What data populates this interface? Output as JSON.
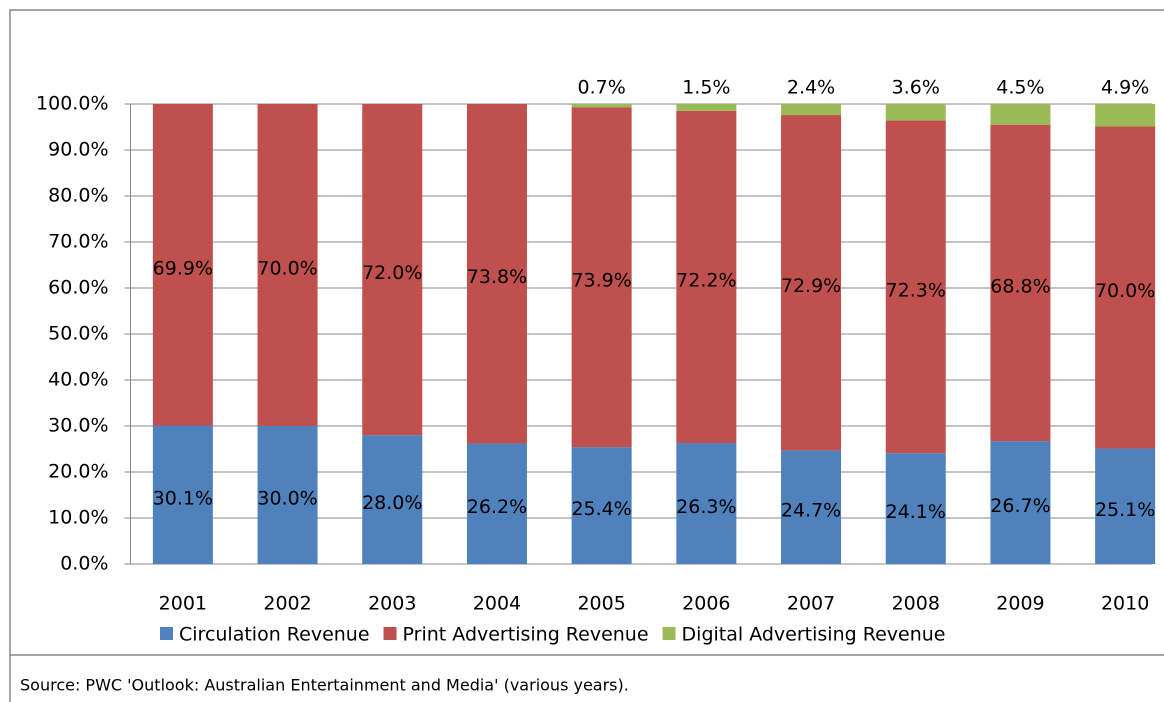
{
  "chart_data": {
    "type": "stacked_bar",
    "categories": [
      "2001",
      "2002",
      "2003",
      "2004",
      "2005",
      "2006",
      "2007",
      "2008",
      "2009",
      "2010"
    ],
    "series": [
      {
        "name": "Circulation Revenue",
        "color": "#4f81bd",
        "values": [
          30.1,
          30.0,
          28.0,
          26.2,
          25.4,
          26.3,
          24.7,
          24.1,
          26.7,
          25.1
        ],
        "value_labels": [
          "30.1%",
          "30.0%",
          "28.0%",
          "26.2%",
          "25.4%",
          "26.3%",
          "24.7%",
          "24.1%",
          "26.7%",
          "25.1%"
        ]
      },
      {
        "name": "Print Advertising Revenue",
        "color": "#c0504d",
        "values": [
          69.9,
          70.0,
          72.0,
          73.8,
          73.9,
          72.2,
          72.9,
          72.3,
          68.8,
          70.0
        ],
        "value_labels": [
          "69.9%",
          "70.0%",
          "72.0%",
          "73.8%",
          "73.9%",
          "72.2%",
          "72.9%",
          "72.3%",
          "68.8%",
          "70.0%"
        ]
      },
      {
        "name": "Digital Advertising Revenue",
        "color": "#9bbb59",
        "values": [
          null,
          null,
          null,
          null,
          0.7,
          1.5,
          2.4,
          3.6,
          4.5,
          4.9
        ],
        "value_labels": [
          null,
          null,
          null,
          null,
          "0.7%",
          "1.5%",
          "2.4%",
          "3.6%",
          "4.5%",
          "4.9%"
        ]
      }
    ],
    "ylim": [
      0,
      100
    ],
    "yticks": [
      {
        "value": 0,
        "label": "0.0%"
      },
      {
        "value": 10,
        "label": "10.0%"
      },
      {
        "value": 20,
        "label": "20.0%"
      },
      {
        "value": 30,
        "label": "30.0%"
      },
      {
        "value": 40,
        "label": "40.0%"
      },
      {
        "value": 50,
        "label": "50.0%"
      },
      {
        "value": 60,
        "label": "60.0%"
      },
      {
        "value": 70,
        "label": "70.0%"
      },
      {
        "value": 80,
        "label": "80.0%"
      },
      {
        "value": 90,
        "label": "90.0%"
      },
      {
        "value": 100,
        "label": "100.0%"
      }
    ],
    "grid": true,
    "legend": "bottom",
    "source": "Source: PWC 'Outlook: Australian Entertainment and Media' (various years)."
  }
}
